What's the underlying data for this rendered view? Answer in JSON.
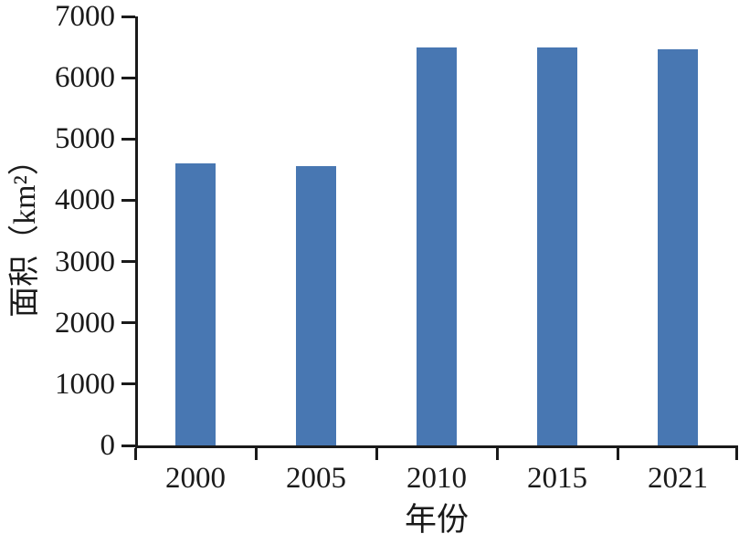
{
  "chart_data": {
    "type": "bar",
    "title": "",
    "categories": [
      "2000",
      "2005",
      "2010",
      "2015",
      "2021"
    ],
    "values": [
      4600,
      4560,
      6500,
      6490,
      6470
    ],
    "xlabel": "年份",
    "ylabel": "面积（km²）",
    "ylim": [
      0,
      7000
    ],
    "y_ticks": [
      0,
      1000,
      2000,
      3000,
      4000,
      5000,
      6000,
      7000
    ],
    "grid": false,
    "legend": null,
    "bar_color": "#4877B2",
    "axis_color": "#1a1a1a",
    "background_color": "#ffffff"
  }
}
